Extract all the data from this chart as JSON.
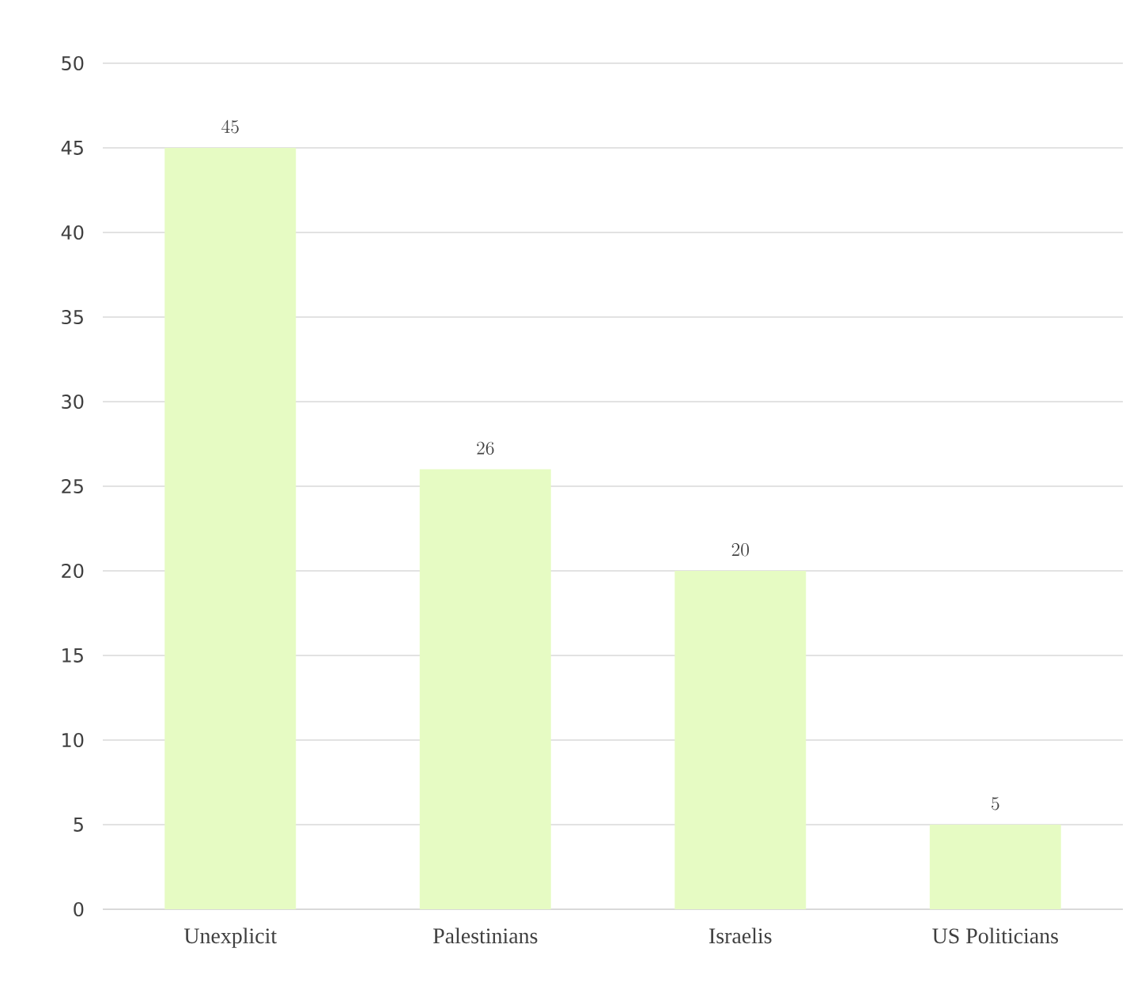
{
  "chart_data": {
    "type": "bar",
    "categories": [
      "Unexplicit",
      "Palestinians",
      "Israelis",
      "US Politicians"
    ],
    "values": [
      45,
      26,
      20,
      5
    ],
    "color": "#e6fbc3",
    "ylim": [
      0,
      50
    ],
    "yticks": [
      0,
      5,
      10,
      15,
      20,
      25,
      30,
      35,
      40,
      45,
      50
    ],
    "grid": "y",
    "data_labels": true
  }
}
